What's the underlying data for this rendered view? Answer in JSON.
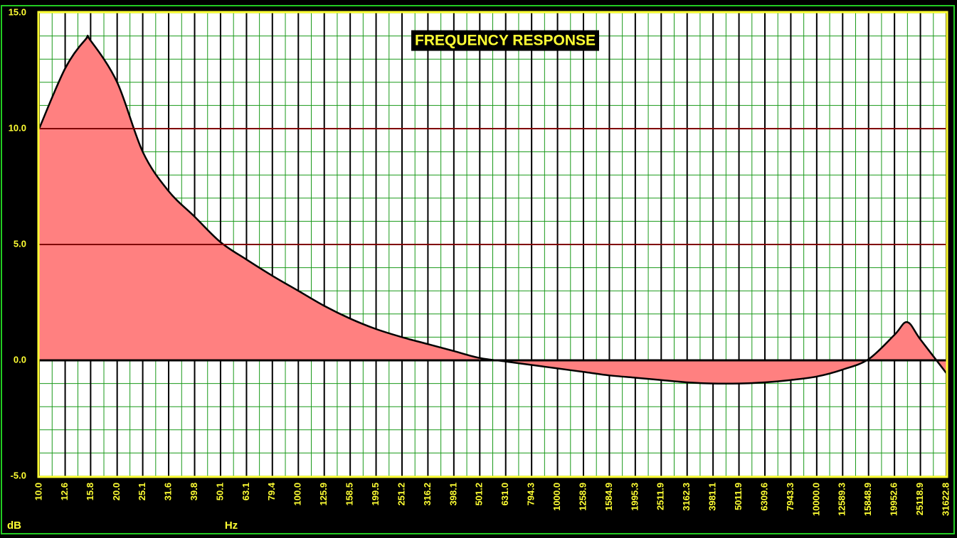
{
  "chart_data": {
    "type": "area",
    "title": "FREQUENCY RESPONSE",
    "xlabel": "Hz",
    "ylabel": "dB",
    "xscale": "log",
    "xlim": [
      10,
      31622.8
    ],
    "ylim": [
      -5,
      15
    ],
    "xticks": [
      {
        "value": 10,
        "label": "10.0"
      },
      {
        "value": 12.6,
        "label": "12.6"
      },
      {
        "value": 15.8,
        "label": "15.8"
      },
      {
        "value": 20,
        "label": "20.0"
      },
      {
        "value": 25.1,
        "label": "25.1"
      },
      {
        "value": 31.6,
        "label": "31.6"
      },
      {
        "value": 39.8,
        "label": "39.8"
      },
      {
        "value": 50.1,
        "label": "50.1"
      },
      {
        "value": 63.1,
        "label": "63.1"
      },
      {
        "value": 79.4,
        "label": "79.4"
      },
      {
        "value": 100,
        "label": "100.0"
      },
      {
        "value": 125.9,
        "label": "125.9"
      },
      {
        "value": 158.5,
        "label": "158.5"
      },
      {
        "value": 199.5,
        "label": "199.5"
      },
      {
        "value": 251.2,
        "label": "251.2"
      },
      {
        "value": 316.2,
        "label": "316.2"
      },
      {
        "value": 398.1,
        "label": "398.1"
      },
      {
        "value": 501.2,
        "label": "501.2"
      },
      {
        "value": 631,
        "label": "631.0"
      },
      {
        "value": 794.3,
        "label": "794.3"
      },
      {
        "value": 1000,
        "label": "1000.0"
      },
      {
        "value": 1258.9,
        "label": "1258.9"
      },
      {
        "value": 1584.9,
        "label": "1584.9"
      },
      {
        "value": 1995.3,
        "label": "1995.3"
      },
      {
        "value": 2511.9,
        "label": "2511.9"
      },
      {
        "value": 3162.3,
        "label": "3162.3"
      },
      {
        "value": 3981.1,
        "label": "3981.1"
      },
      {
        "value": 5011.9,
        "label": "5011.9"
      },
      {
        "value": 6309.6,
        "label": "6309.6"
      },
      {
        "value": 7943.3,
        "label": "7943.3"
      },
      {
        "value": 10000,
        "label": "10000.0"
      },
      {
        "value": 12589.3,
        "label": "12589.3"
      },
      {
        "value": 15848.9,
        "label": "15848.9"
      },
      {
        "value": 19952.6,
        "label": "19952.6"
      },
      {
        "value": 25118.9,
        "label": "25118.9"
      },
      {
        "value": 31622.8,
        "label": "31622.8"
      }
    ],
    "yticks": [
      {
        "value": 15,
        "label": "15.0"
      },
      {
        "value": 10,
        "label": "10.0"
      },
      {
        "value": 5,
        "label": "5.0"
      },
      {
        "value": 0,
        "label": "0.0"
      },
      {
        "value": -5,
        "label": "-5.0"
      }
    ],
    "grid": true,
    "reference_lines": [
      {
        "value": 10,
        "color": "#800000"
      },
      {
        "value": 5,
        "color": "#800000"
      },
      {
        "value": 0,
        "color": "#000000"
      }
    ],
    "series": [
      {
        "color": "#ff8080",
        "x": [
          10,
          12.6,
          15.1,
          15.8,
          20,
          25.1,
          31.6,
          39.8,
          50.1,
          63.1,
          79.4,
          100,
          125.9,
          158.5,
          199.5,
          251.2,
          316.2,
          398.1,
          501.2,
          631,
          794.3,
          1000,
          1258.9,
          1584.9,
          1995.3,
          2511.9,
          3162.3,
          3981.1,
          5011.9,
          6309.6,
          7943.3,
          10000,
          12589.3,
          15848.9,
          19952.6,
          22336,
          25118.9,
          31622.8
        ],
        "values": [
          10.0,
          12.6,
          13.85,
          13.8,
          12.0,
          9.0,
          7.3,
          6.2,
          5.1,
          4.35,
          3.65,
          3.0,
          2.35,
          1.8,
          1.35,
          1.0,
          0.7,
          0.4,
          0.1,
          -0.05,
          -0.2,
          -0.35,
          -0.5,
          -0.65,
          -0.75,
          -0.85,
          -0.95,
          -1.0,
          -1.0,
          -0.95,
          -0.85,
          -0.7,
          -0.4,
          0.05,
          1.1,
          1.65,
          0.9,
          -0.55
        ]
      }
    ]
  }
}
